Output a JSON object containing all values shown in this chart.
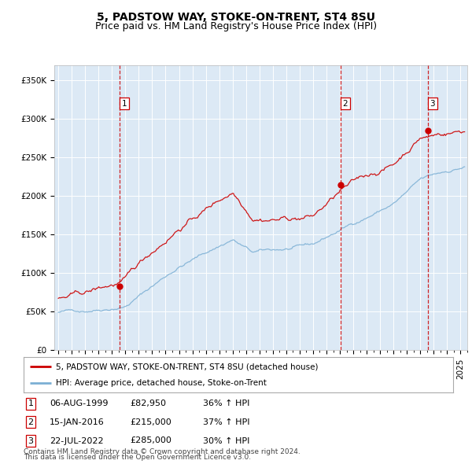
{
  "title": "5, PADSTOW WAY, STOKE-ON-TRENT, ST4 8SU",
  "subtitle": "Price paid vs. HM Land Registry's House Price Index (HPI)",
  "background_color": "#dce9f5",
  "plot_bg_color": "#dce9f5",
  "fig_bg_color": "#ffffff",
  "red_line_color": "#cc0000",
  "blue_line_color": "#7bafd4",
  "dashed_line_color": "#cc0000",
  "marker_color": "#cc0000",
  "ylim": [
    0,
    370000
  ],
  "yticks": [
    0,
    50000,
    100000,
    150000,
    200000,
    250000,
    300000,
    350000
  ],
  "ytick_labels": [
    "£0",
    "£50K",
    "£100K",
    "£150K",
    "£200K",
    "£250K",
    "£300K",
    "£350K"
  ],
  "xlim_start": 1994.7,
  "xlim_end": 2025.5,
  "purchase_dates": [
    1999.59,
    2016.04,
    2022.55
  ],
  "purchase_prices": [
    82950,
    215000,
    285000
  ],
  "purchase_labels": [
    "1",
    "2",
    "3"
  ],
  "purchase_date_strs": [
    "06-AUG-1999",
    "15-JAN-2016",
    "22-JUL-2022"
  ],
  "purchase_price_strs": [
    "£82,950",
    "£215,000",
    "£285,000"
  ],
  "purchase_hpi_strs": [
    "36% ↑ HPI",
    "37% ↑ HPI",
    "30% ↑ HPI"
  ],
  "legend_red_label": "5, PADSTOW WAY, STOKE-ON-TRENT, ST4 8SU (detached house)",
  "legend_blue_label": "HPI: Average price, detached house, Stoke-on-Trent",
  "footer_line1": "Contains HM Land Registry data © Crown copyright and database right 2024.",
  "footer_line2": "This data is licensed under the Open Government Licence v3.0.",
  "title_fontsize": 10,
  "subtitle_fontsize": 9,
  "tick_fontsize": 7.5,
  "legend_fontsize": 7.5,
  "footer_fontsize": 6.5,
  "table_fontsize": 8
}
